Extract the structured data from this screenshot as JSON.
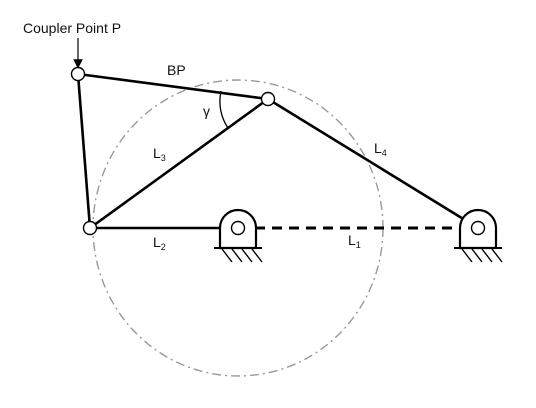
{
  "labels": {
    "coupler_point": "Coupler Point P",
    "bp": "BP",
    "gamma": "γ",
    "l3": "L",
    "l3_sub": "3",
    "l4": "L",
    "l4_sub": "4",
    "l2": "L",
    "l2_sub": "2",
    "l1": "L",
    "l1_sub": "1"
  },
  "colors": {
    "link": "#000000",
    "circle": "#9a9a9a",
    "background": "#ffffff"
  }
}
